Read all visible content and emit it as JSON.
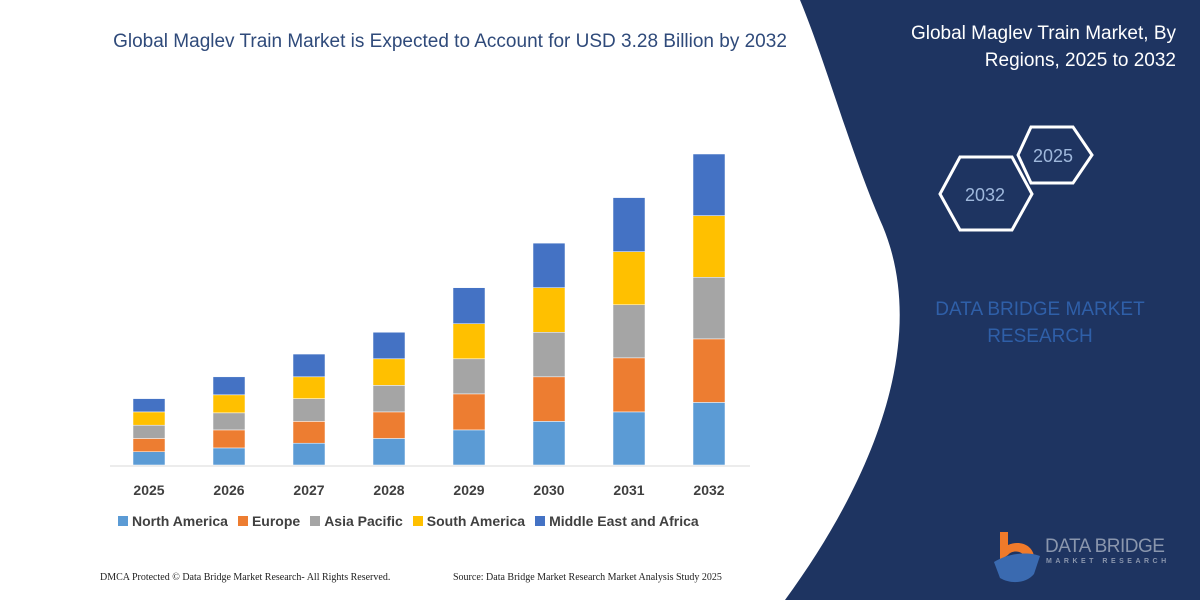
{
  "title": "Global Maglev Train Market is Expected to Account for USD 3.28 Billion by 2032",
  "side_panel": {
    "title": "Global Maglev Train Market, By Regions, 2025 to 2032",
    "hex_start": "2025",
    "hex_end": "2032",
    "brand_text": "DATA BRIDGE MARKET RESEARCH",
    "logo_name": "DATA BRIDGE",
    "logo_sub": "MARKET RESEARCH",
    "color": "#1e3461"
  },
  "footer": {
    "left": "DMCA Protected © Data Bridge Market Research-  All Rights Reserved.",
    "right": "Source: Data Bridge Market Research  Market Analysis Study 2025"
  },
  "chart_data": {
    "type": "bar",
    "stacked": true,
    "categories": [
      "2025",
      "2026",
      "2027",
      "2028",
      "2029",
      "2030",
      "2031",
      "2032"
    ],
    "series": [
      {
        "name": "North America",
        "color": "#5b9bd5",
        "values": [
          0.14,
          0.18,
          0.23,
          0.28,
          0.37,
          0.46,
          0.56,
          0.66
        ]
      },
      {
        "name": "Europe",
        "color": "#ed7d31",
        "values": [
          0.14,
          0.19,
          0.23,
          0.28,
          0.38,
          0.47,
          0.57,
          0.67
        ]
      },
      {
        "name": "Asia Pacific",
        "color": "#a5a5a5",
        "values": [
          0.14,
          0.18,
          0.24,
          0.28,
          0.37,
          0.47,
          0.56,
          0.65
        ]
      },
      {
        "name": "South America",
        "color": "#ffc000",
        "values": [
          0.14,
          0.19,
          0.23,
          0.28,
          0.37,
          0.47,
          0.56,
          0.65
        ]
      },
      {
        "name": "Middle East and Africa",
        "color": "#4472c4",
        "values": [
          0.14,
          0.19,
          0.24,
          0.28,
          0.38,
          0.47,
          0.57,
          0.65
        ]
      }
    ],
    "xlabel": "",
    "ylabel": "",
    "ylim": [
      0,
      3.28
    ],
    "grid": false,
    "legend": "bottom"
  }
}
